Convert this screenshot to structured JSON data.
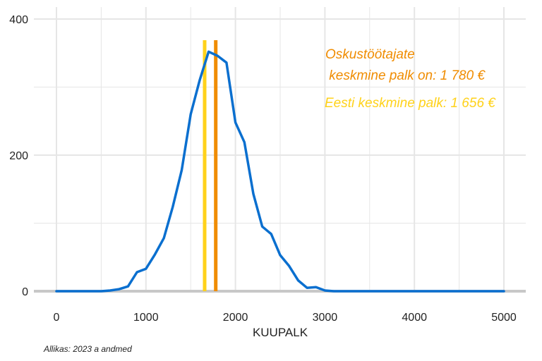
{
  "chart_data": {
    "type": "line",
    "title": "",
    "xlabel": "KUUPALK",
    "ylabel": "",
    "xlim": [
      -230,
      5250
    ],
    "ylim": [
      0,
      400
    ],
    "xticks": [
      0,
      1000,
      2000,
      3000,
      4000,
      5000
    ],
    "yticks": [
      0,
      200,
      400
    ],
    "grid": true,
    "series": [
      {
        "color": "#0a6fcf",
        "x": [
          0,
          100,
          200,
          300,
          400,
          500,
          600,
          700,
          800,
          900,
          1000,
          1100,
          1200,
          1300,
          1400,
          1500,
          1600,
          1700,
          1800,
          1900,
          2000,
          2100,
          2200,
          2300,
          2400,
          2500,
          2600,
          2700,
          2800,
          2900,
          3000,
          3100,
          3200,
          3500,
          4000,
          4500,
          5000
        ],
        "y": [
          0,
          0,
          0,
          0,
          0,
          0,
          1,
          3,
          7,
          28,
          33,
          54,
          78,
          124,
          178,
          260,
          310,
          352,
          346,
          336,
          248,
          219,
          143,
          95,
          84,
          53,
          37,
          16,
          5,
          6,
          1,
          0,
          0,
          0,
          0,
          0,
          0
        ]
      }
    ],
    "vlines": [
      {
        "x": 1656,
        "color": "#ffd21a",
        "label": "Eesti keskmine palk: 1 656 €"
      },
      {
        "x": 1780,
        "color": "#f08c00",
        "label_line1": "Oskustöötajate",
        "label_line2": " keskmine palk on: 1 780 €"
      }
    ]
  },
  "source_note": "Allikas: 2023 a andmed"
}
